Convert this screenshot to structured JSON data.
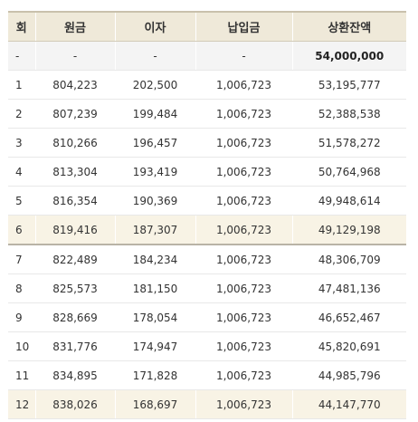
{
  "table": {
    "headers": {
      "round": "회",
      "principal": "원금",
      "interest": "이자",
      "payment": "납입금",
      "balance": "상환잔액"
    },
    "initial_row": {
      "round": "-",
      "principal": "-",
      "interest": "-",
      "payment": "-",
      "balance": "54,000,000"
    },
    "rows": [
      {
        "round": "1",
        "principal": "804,223",
        "interest": "202,500",
        "payment": "1,006,723",
        "balance": "53,195,777"
      },
      {
        "round": "2",
        "principal": "807,239",
        "interest": "199,484",
        "payment": "1,006,723",
        "balance": "52,388,538"
      },
      {
        "round": "3",
        "principal": "810,266",
        "interest": "196,457",
        "payment": "1,006,723",
        "balance": "51,578,272"
      },
      {
        "round": "4",
        "principal": "813,304",
        "interest": "193,419",
        "payment": "1,006,723",
        "balance": "50,764,968"
      },
      {
        "round": "5",
        "principal": "816,354",
        "interest": "190,369",
        "payment": "1,006,723",
        "balance": "49,948,614"
      },
      {
        "round": "6",
        "principal": "819,416",
        "interest": "187,307",
        "payment": "1,006,723",
        "balance": "49,129,198"
      },
      {
        "round": "7",
        "principal": "822,489",
        "interest": "184,234",
        "payment": "1,006,723",
        "balance": "48,306,709"
      },
      {
        "round": "8",
        "principal": "825,573",
        "interest": "181,150",
        "payment": "1,006,723",
        "balance": "47,481,136"
      },
      {
        "round": "9",
        "principal": "828,669",
        "interest": "178,054",
        "payment": "1,006,723",
        "balance": "46,652,467"
      },
      {
        "round": "10",
        "principal": "831,776",
        "interest": "174,947",
        "payment": "1,006,723",
        "balance": "45,820,691"
      },
      {
        "round": "11",
        "principal": "834,895",
        "interest": "171,828",
        "payment": "1,006,723",
        "balance": "44,985,796"
      },
      {
        "round": "12",
        "principal": "838,026",
        "interest": "168,697",
        "payment": "1,006,723",
        "balance": "44,147,770"
      }
    ]
  },
  "colors": {
    "header_bg": "#efe9d9",
    "highlight_row_bg": "#f8f3e5",
    "initial_row_bg": "#f4f4f4",
    "text": "#333333"
  }
}
